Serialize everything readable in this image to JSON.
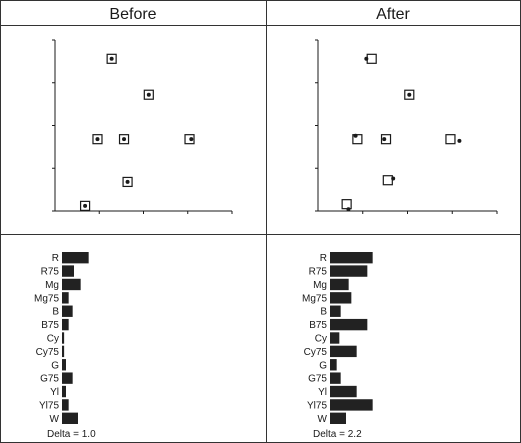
{
  "panels": [
    {
      "header": "Before",
      "delta_label": "Delta = 1.0"
    },
    {
      "header": "After",
      "delta_label": "Delta = 2.2"
    }
  ],
  "colors": {
    "ink": "#1a1a1a",
    "bar": "#222222",
    "grid": "#333333",
    "background": "#ffffff"
  },
  "chart_data": [
    {
      "type": "scatter",
      "title": "Before",
      "xlim": [
        0,
        100
      ],
      "ylim": [
        0,
        100
      ],
      "markers": [
        "square-target",
        "dot-measured"
      ],
      "points": [
        {
          "target": [
            32,
            89
          ],
          "measured": [
            32,
            89
          ]
        },
        {
          "target": [
            53,
            68
          ],
          "measured": [
            53,
            68
          ]
        },
        {
          "target": [
            24,
            42
          ],
          "measured": [
            24,
            42
          ]
        },
        {
          "target": [
            39,
            42
          ],
          "measured": [
            39,
            42
          ]
        },
        {
          "target": [
            76,
            42
          ],
          "measured": [
            77,
            42
          ]
        },
        {
          "target": [
            41,
            17
          ],
          "measured": [
            41,
            17
          ]
        },
        {
          "target": [
            17,
            3
          ],
          "measured": [
            17,
            3
          ]
        }
      ]
    },
    {
      "type": "scatter",
      "title": "After",
      "xlim": [
        0,
        100
      ],
      "ylim": [
        0,
        100
      ],
      "markers": [
        "square-target",
        "dot-measured"
      ],
      "points": [
        {
          "target": [
            30,
            89
          ],
          "measured": [
            27,
            89
          ]
        },
        {
          "target": [
            51,
            68
          ],
          "measured": [
            51,
            68
          ]
        },
        {
          "target": [
            22,
            42
          ],
          "measured": [
            21,
            44
          ]
        },
        {
          "target": [
            38,
            42
          ],
          "measured": [
            37,
            42
          ]
        },
        {
          "target": [
            74,
            42
          ],
          "measured": [
            79,
            41
          ]
        },
        {
          "target": [
            39,
            18
          ],
          "measured": [
            42,
            19
          ]
        },
        {
          "target": [
            16,
            4
          ],
          "measured": [
            17,
            1
          ]
        }
      ]
    },
    {
      "type": "bar",
      "orientation": "horizontal",
      "categories": [
        "R",
        "R75",
        "Mg",
        "Mg75",
        "B",
        "B75",
        "Cy",
        "Cy75",
        "G",
        "G75",
        "Yl",
        "Yl75",
        "W"
      ],
      "values": [
        1.0,
        0.45,
        0.7,
        0.25,
        0.4,
        0.25,
        0.08,
        0.08,
        0.15,
        0.4,
        0.15,
        0.25,
        0.6
      ],
      "xlim": [
        0,
        3
      ],
      "annotation": "Delta = 1.0"
    },
    {
      "type": "bar",
      "orientation": "horizontal",
      "categories": [
        "R",
        "R75",
        "Mg",
        "Mg75",
        "B",
        "B75",
        "Cy",
        "Cy75",
        "G",
        "G75",
        "Yl",
        "Yl75",
        "W"
      ],
      "values": [
        1.6,
        1.4,
        0.7,
        0.8,
        0.4,
        1.4,
        0.35,
        1.0,
        0.25,
        0.4,
        1.0,
        1.6,
        0.6
      ],
      "xlim": [
        0,
        3
      ],
      "annotation": "Delta = 2.2"
    }
  ]
}
